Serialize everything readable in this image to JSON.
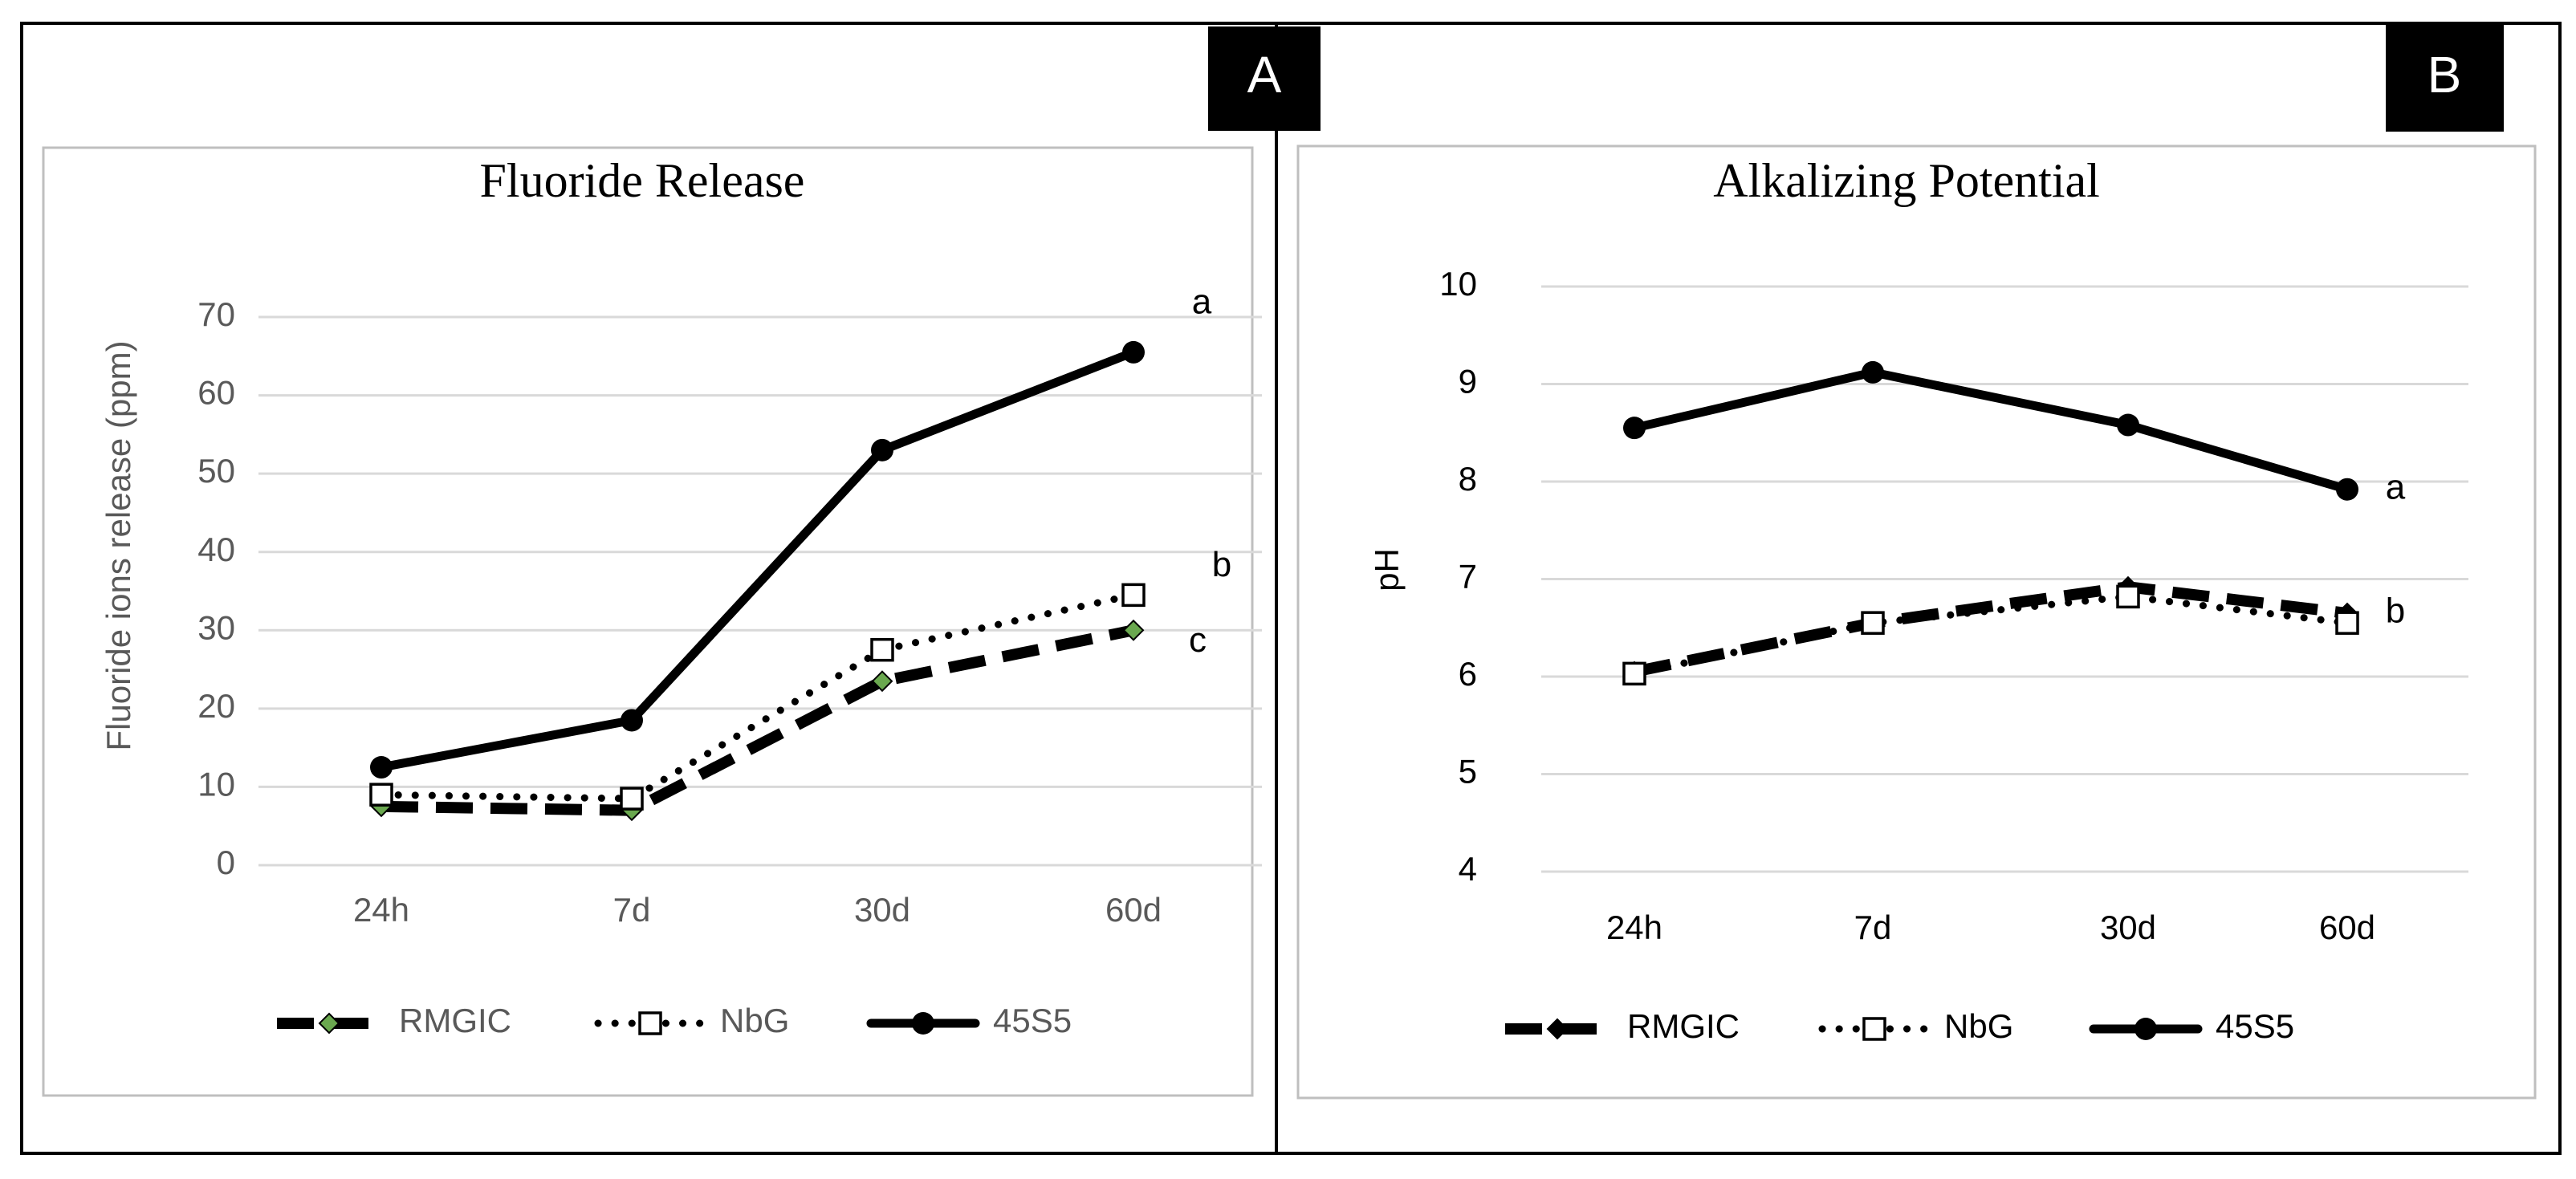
{
  "colors": {
    "series_line": "#000000",
    "grid": "#d9d9d9",
    "frame": "#bfbfbf",
    "tick_text_a": "#595959",
    "tick_text_b": "#000000",
    "rmgic_marker_fill_a": "#6aa84f",
    "label_box": "#000000",
    "label_text": "#ffffff"
  },
  "chart_data": [
    {
      "panel": "A",
      "type": "line",
      "title": "Fluoride Release",
      "xlabel": "",
      "ylabel": "Fluoride ions release (ppm)",
      "categories": [
        "24h",
        "7d",
        "30d",
        "60d"
      ],
      "ylim": [
        0,
        70
      ],
      "yticks": [
        0,
        10,
        20,
        30,
        40,
        50,
        60,
        70
      ],
      "grid": true,
      "legend_position": "bottom",
      "series": [
        {
          "name": "RMGIC",
          "values": [
            7.5,
            7,
            23.5,
            30
          ],
          "style": "dashed",
          "marker": "diamond",
          "letter": "c"
        },
        {
          "name": "NbG",
          "values": [
            9,
            8.5,
            27.5,
            34.5
          ],
          "style": "dotted",
          "marker": "square-open",
          "letter": "b"
        },
        {
          "name": "45S5",
          "values": [
            12.5,
            18.5,
            53,
            65.5
          ],
          "style": "solid",
          "marker": "circle",
          "letter": "a"
        }
      ]
    },
    {
      "panel": "B",
      "type": "line",
      "title": "Alkalizing Potential",
      "xlabel": "",
      "ylabel": "pH",
      "categories": [
        "24h",
        "7d",
        "30d",
        "60d"
      ],
      "ylim": [
        4,
        10
      ],
      "yticks": [
        4,
        5,
        6,
        7,
        8,
        9,
        10
      ],
      "grid": true,
      "legend_position": "bottom",
      "series": [
        {
          "name": "RMGIC",
          "values": [
            6.05,
            6.55,
            6.92,
            6.65
          ],
          "style": "dashed",
          "marker": "diamond",
          "letter": "b"
        },
        {
          "name": "NbG",
          "values": [
            6.03,
            6.55,
            6.82,
            6.55
          ],
          "style": "dotted",
          "marker": "square-open",
          "letter": ""
        },
        {
          "name": "45S5",
          "values": [
            8.55,
            9.12,
            8.58,
            7.92
          ],
          "style": "solid",
          "marker": "circle",
          "letter": "a"
        }
      ]
    }
  ]
}
